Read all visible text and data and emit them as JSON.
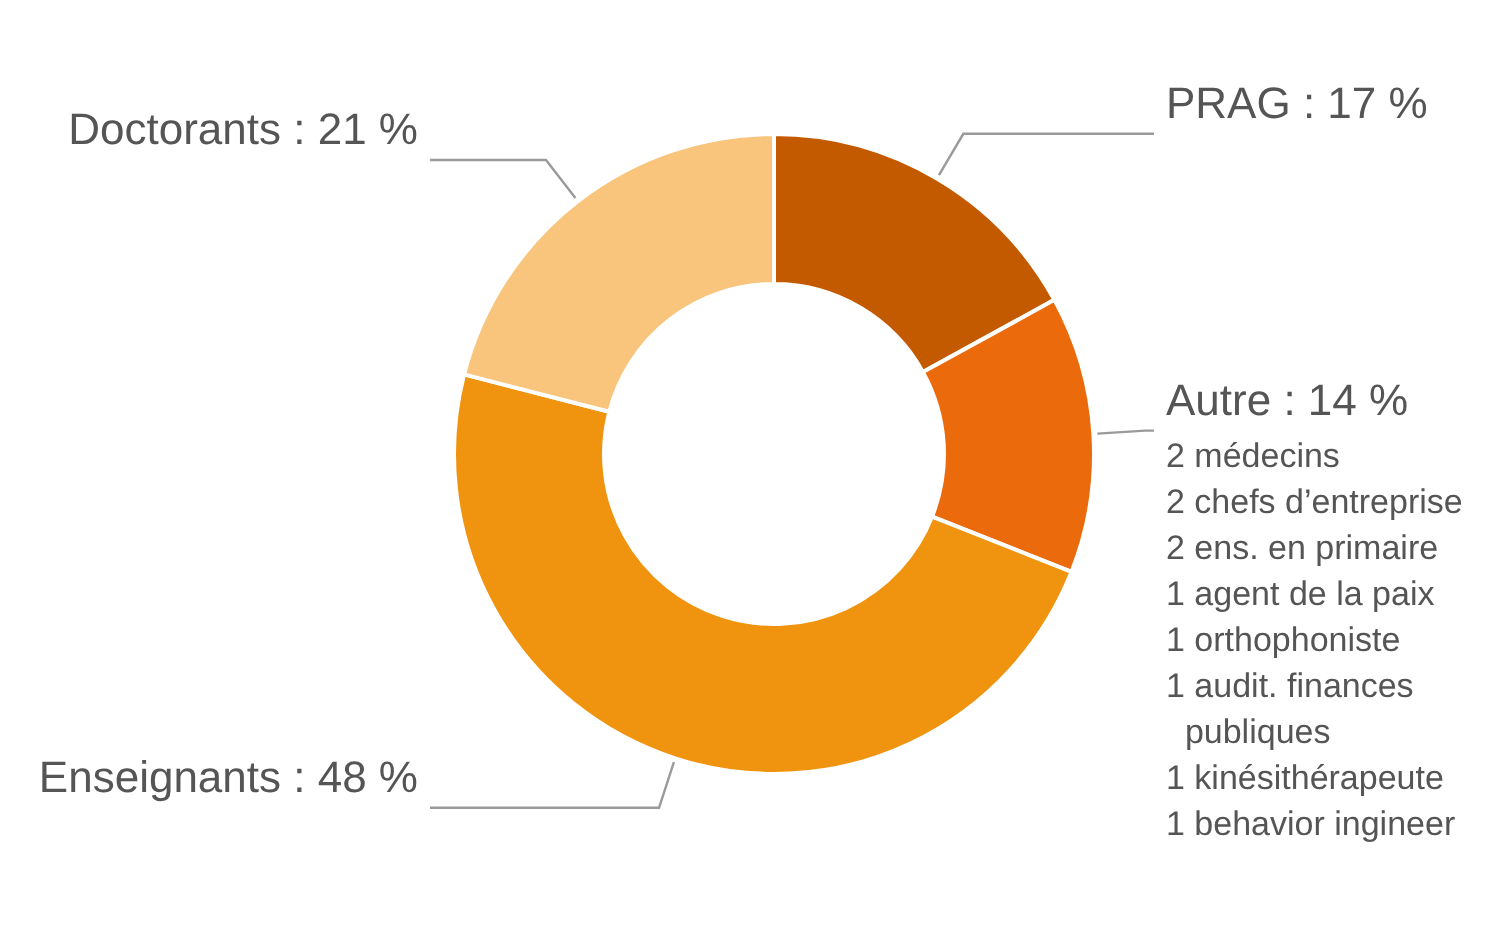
{
  "chart_data": {
    "type": "donut",
    "categories": [
      "PRAG",
      "Autre",
      "Enseignants",
      "Doctorants"
    ],
    "values": [
      17,
      14,
      48,
      21
    ],
    "value_labels": [
      "17 %",
      "14 %",
      "48 %",
      "21 %"
    ],
    "colors": [
      "#c45a00",
      "#ea6a0c",
      "#f09410",
      "#f9c47c"
    ],
    "annotations": [
      {
        "text": "2 médecins",
        "x": "Autre"
      },
      {
        "text": "2 chefs d’entreprise",
        "x": "Autre"
      },
      {
        "text": "2 ens. en primaire",
        "x": "Autre"
      },
      {
        "text": "1 agent de la paix",
        "x": "Autre"
      },
      {
        "text": "1 orthophoniste",
        "x": "Autre"
      },
      {
        "text": "1 audit. finances publiques",
        "x": "Autre"
      },
      {
        "text": "1 kinésithérapeute",
        "x": "Autre"
      },
      {
        "text": "1 behavior ingineer",
        "x": "Autre"
      }
    ]
  }
}
